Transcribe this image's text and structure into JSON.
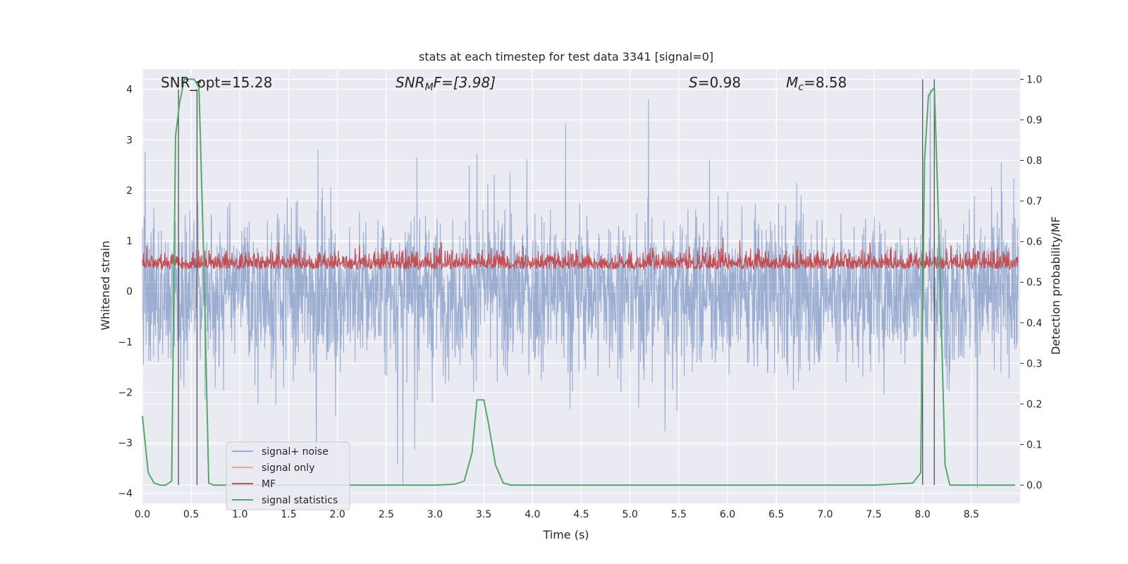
{
  "chart_data": {
    "type": "line",
    "title": "stats at each timestep for test data 3341 [signal=0]",
    "xlabel": "Time (s)",
    "ylabel_left": "Whitened strain",
    "ylabel_right": "Detection probability/MF",
    "xlim": [
      0.0,
      9.0
    ],
    "ylim_left": [
      -4.2,
      4.4
    ],
    "ylim_right": [
      -0.045,
      1.025
    ],
    "x_ticks": [
      "0.0",
      "0.5",
      "1.0",
      "1.5",
      "2.0",
      "2.5",
      "3.0",
      "3.5",
      "4.0",
      "4.5",
      "5.0",
      "5.5",
      "6.0",
      "6.5",
      "7.0",
      "7.5",
      "8.0",
      "8.5"
    ],
    "y_left_ticks": [
      "4",
      "3",
      "2",
      "1",
      "0",
      "−1",
      "−2",
      "−3",
      "−4"
    ],
    "y_right_ticks": [
      "1.0",
      "0.9",
      "0.8",
      "0.7",
      "0.6",
      "0.5",
      "0.4",
      "0.3",
      "0.2",
      "0.1",
      "0.0"
    ],
    "grid": true,
    "annotations": {
      "snr_opt": "SNR_opt=15.28",
      "snr_mf_main": "SNR",
      "snr_mf_sub": "M",
      "snr_mf_tail": "F=[3.98]",
      "s_var": "S",
      "s_value": "=0.98",
      "mc_var": "M",
      "mc_sub": "c",
      "mc_value": "=8.58"
    },
    "legend": {
      "placement": "lower-left",
      "entries": [
        {
          "label": "signal+ noise",
          "color": "#4c72b0"
        },
        {
          "label": "signal only",
          "color": "#dd8452"
        },
        {
          "label": "MF",
          "color": "#c44e52"
        },
        {
          "label": "signal statistics",
          "color": "#55a868"
        }
      ]
    },
    "series": [
      {
        "name": "signal+ noise",
        "axis": "left",
        "color": "#4c72b0",
        "style": "dense noise, approx. range -3.9 to 4.0"
      },
      {
        "name": "MF",
        "axis": "right",
        "color": "#c44e52",
        "style": "dense noise, approx. range 0.49 to 0.61"
      },
      {
        "name": "signal statistics",
        "axis": "right",
        "color": "#55a868",
        "x": [
          0.0,
          0.06,
          0.12,
          0.18,
          0.24,
          0.3,
          0.34,
          0.38,
          0.43,
          0.48,
          0.53,
          0.58,
          0.63,
          0.68,
          0.73,
          0.8,
          1.0,
          2.0,
          3.0,
          3.2,
          3.3,
          3.38,
          3.43,
          3.5,
          3.55,
          3.62,
          3.7,
          3.78,
          3.9,
          4.5,
          6.0,
          7.5,
          7.9,
          7.98,
          8.02,
          8.06,
          8.12,
          8.17,
          8.23,
          8.28,
          8.35,
          8.5,
          8.95
        ],
        "values": [
          0.17,
          0.03,
          0.005,
          0.0,
          0.0,
          0.01,
          0.86,
          0.94,
          1.0,
          1.0,
          1.0,
          0.98,
          0.55,
          0.005,
          0.0,
          0.0,
          0.0,
          0.0,
          0.0,
          0.002,
          0.01,
          0.08,
          0.21,
          0.21,
          0.15,
          0.05,
          0.005,
          0.0,
          0.0,
          0.0,
          0.0,
          0.0,
          0.005,
          0.03,
          0.8,
          0.96,
          0.98,
          0.6,
          0.05,
          0.0,
          0.0,
          0.0,
          0.0
        ]
      }
    ],
    "vertical_lines_x": [
      0.37,
      0.56,
      8.0,
      8.12
    ],
    "colors": {
      "plot_background": "#eaeaf2",
      "grid": "#ffffff",
      "text": "#262626",
      "vline": "#555555"
    }
  }
}
